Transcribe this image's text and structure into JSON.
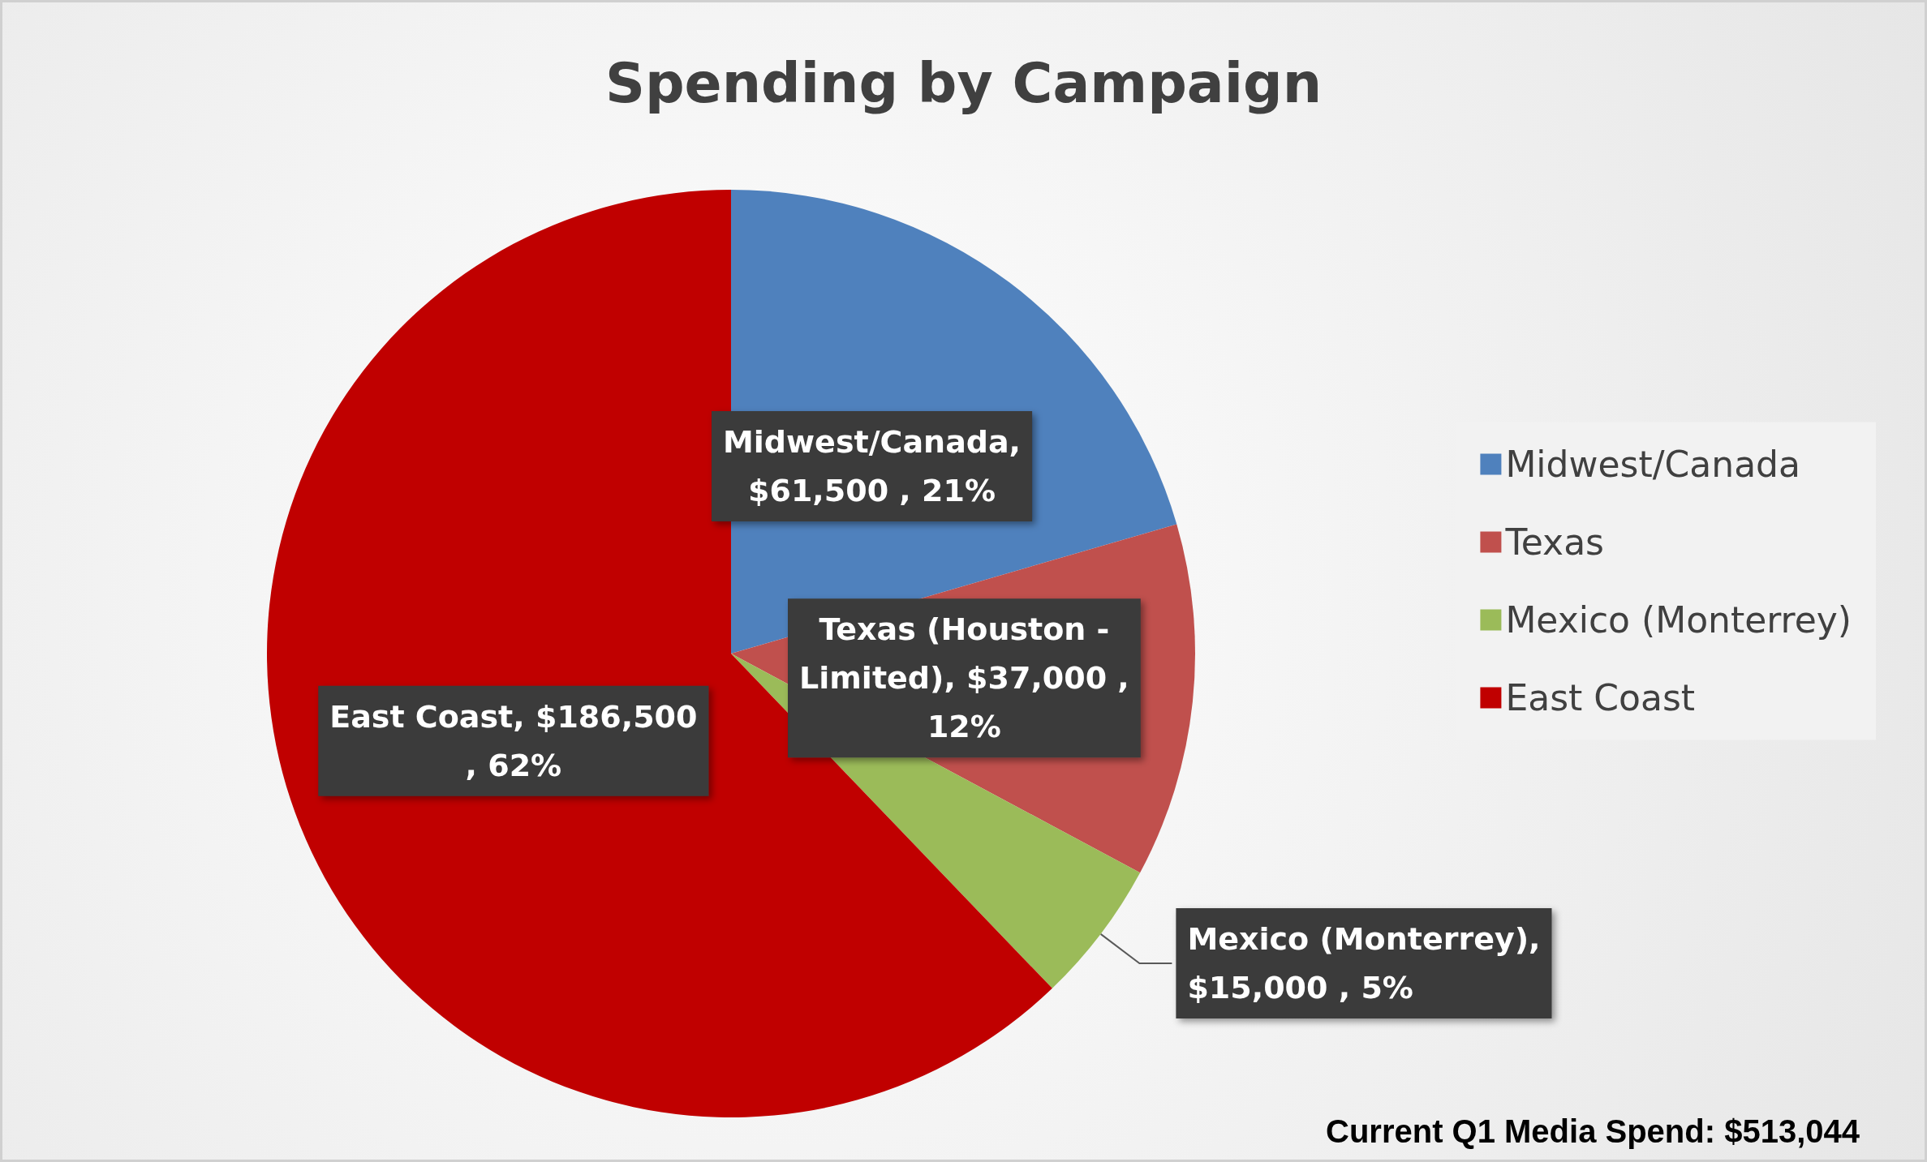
{
  "chart_data": {
    "type": "pie",
    "title": "Spending by Campaign",
    "categories": [
      "Midwest/Canada",
      "Texas",
      "Mexico (Monterrey)",
      "East Coast"
    ],
    "values": [
      61500,
      37000,
      15000,
      186500
    ],
    "colors": [
      "#4f81bd",
      "#c0504d",
      "#9bbb59",
      "#c00000"
    ],
    "value_labels": [
      "Midwest/Canada,\n$61,500 , 21%",
      "Texas (Houston -\nLimited), $37,000 ,\n12%",
      "Mexico (Monterrey),\n$15,000 , 5%",
      "East Coast, $186,500\n, 62%"
    ],
    "legend": "right",
    "annotations": [
      "Current Q1 Media Spend: $513,044"
    ]
  }
}
